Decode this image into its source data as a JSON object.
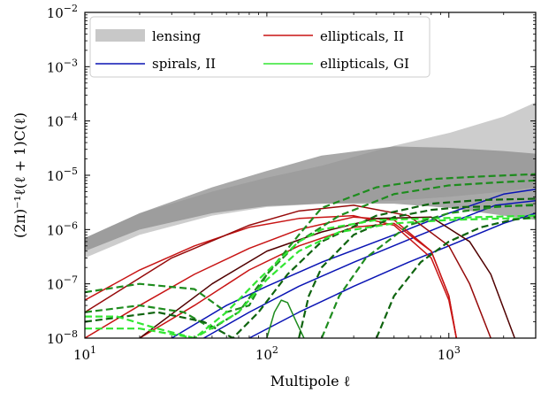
{
  "chart_data": {
    "type": "line",
    "xlabel": "Multipole ℓ",
    "ylabel": "(2π)⁻¹ℓ(ℓ + 1)C(ℓ)",
    "xscale": "log",
    "yscale": "log",
    "xlim": [
      10,
      3000
    ],
    "ylim": [
      1e-08,
      0.01
    ],
    "grid": false,
    "legend_position": "top-left",
    "x_ticks": [
      {
        "value": 10,
        "label": "10",
        "exp": "1"
      },
      {
        "value": 100,
        "label": "10",
        "exp": "2"
      },
      {
        "value": 1000,
        "label": "10",
        "exp": "3"
      }
    ],
    "y_ticks": [
      {
        "value": 1e-08,
        "label": "10",
        "exp": "−8"
      },
      {
        "value": 1e-07,
        "label": "10",
        "exp": "−7"
      },
      {
        "value": 1e-06,
        "label": "10",
        "exp": "−6"
      },
      {
        "value": 1e-05,
        "label": "10",
        "exp": "−5"
      },
      {
        "value": 0.0001,
        "label": "10",
        "exp": "−4"
      },
      {
        "value": 0.001,
        "label": "10",
        "exp": "−3"
      },
      {
        "value": 0.01,
        "label": "10",
        "exp": "−2"
      }
    ],
    "legend": [
      {
        "label": "lensing",
        "kind": "band",
        "color": "#c8c8c8"
      },
      {
        "label": "spirals, II",
        "kind": "line",
        "color": "#0a14b4"
      },
      {
        "label": "ellipticals, II",
        "kind": "line",
        "color": "#c81414"
      },
      {
        "label": "ellipticals, GI",
        "kind": "line",
        "color": "#32e632"
      }
    ],
    "bands": [
      {
        "name": "lensing",
        "color": "#c8c8c8",
        "opacity": 0.9,
        "x": [
          10,
          20,
          50,
          100,
          200,
          500,
          1000,
          2000,
          3000
        ],
        "lower": [
          3e-07,
          8e-07,
          1.8e-06,
          2.6e-06,
          3e-06,
          3.4e-06,
          4e-06,
          5e-06,
          6e-06
        ],
        "upper": [
          7e-07,
          2e-06,
          5e-06,
          9e-06,
          1.5e-05,
          3.5e-05,
          6e-05,
          0.00012,
          0.00022
        ]
      },
      {
        "name": "lensing",
        "color": "#8c8c8c",
        "opacity": 0.75,
        "x": [
          10,
          20,
          50,
          100,
          200,
          500,
          1000,
          2000,
          3000
        ],
        "lower": [
          4e-07,
          1e-06,
          2e-06,
          2.7e-06,
          3e-06,
          3e-06,
          2.5e-06,
          1.8e-06,
          1.5e-06
        ],
        "upper": [
          7e-07,
          2e-06,
          6e-06,
          1.2e-05,
          2.3e-05,
          3.4e-05,
          3.2e-05,
          2.8e-05,
          2.5e-05
        ]
      }
    ],
    "series": [
      {
        "color": "#0a14b4",
        "dash": false,
        "x": [
          30,
          60,
          100,
          200,
          500,
          1000,
          1500,
          2000,
          3000
        ],
        "y": [
          1e-08,
          4e-08,
          9e-08,
          2.5e-07,
          8e-07,
          2e-06,
          3.2e-06,
          4.5e-06,
          5.5e-06
        ]
      },
      {
        "color": "#0a14b4",
        "dash": false,
        "x": [
          45,
          80,
          150,
          300,
          600,
          1000,
          1800,
          3000
        ],
        "y": [
          1e-08,
          3e-08,
          9e-08,
          2.5e-07,
          6.5e-07,
          1.3e-06,
          2.8e-06,
          3.4e-06
        ]
      },
      {
        "color": "#0a14b4",
        "dash": false,
        "x": [
          80,
          150,
          300,
          600,
          1000,
          2000,
          3000
        ],
        "y": [
          1e-08,
          3e-08,
          9e-08,
          2.5e-07,
          5e-07,
          1.3e-06,
          2e-06
        ]
      },
      {
        "color": "#c81414",
        "dash": false,
        "x": [
          10,
          20,
          40,
          80,
          150,
          300,
          500,
          800,
          1000,
          1100
        ],
        "y": [
          5e-08,
          1.8e-07,
          5e-07,
          1.1e-06,
          1.6e-06,
          1.8e-06,
          1.2e-06,
          3e-07,
          5e-08,
          1e-08
        ]
      },
      {
        "color": "#c81414",
        "dash": false,
        "x": [
          10,
          20,
          40,
          80,
          150,
          300,
          500,
          800,
          1000,
          1100
        ],
        "y": [
          1e-08,
          4e-08,
          1.5e-07,
          4.5e-07,
          1e-06,
          1.7e-06,
          1.5e-06,
          4e-07,
          6e-08,
          1e-08
        ]
      },
      {
        "color": "#c81414",
        "dash": false,
        "x": [
          20,
          40,
          80,
          150,
          300,
          500,
          800,
          1000,
          1100
        ],
        "y": [
          1e-08,
          4e-08,
          1.8e-07,
          5e-07,
          1.1e-06,
          1.3e-06,
          4e-07,
          6e-08,
          1e-08
        ]
      },
      {
        "color": "#960a0a",
        "dash": false,
        "x": [
          10,
          30,
          80,
          150,
          300,
          600,
          1000,
          1300,
          1700
        ],
        "y": [
          3e-08,
          3e-07,
          1.2e-06,
          2.2e-06,
          2.8e-06,
          1.8e-06,
          5e-07,
          1e-07,
          1e-08
        ]
      },
      {
        "color": "#500000",
        "dash": false,
        "x": [
          20,
          50,
          100,
          200,
          400,
          800,
          1300,
          1700,
          2300
        ],
        "y": [
          1e-08,
          1e-07,
          4e-07,
          9e-07,
          1.6e-06,
          1.7e-06,
          6e-07,
          1.5e-07,
          1e-08
        ]
      },
      {
        "color": "#1e8c1e",
        "dash": false,
        "x": [
          100,
          110,
          120,
          130,
          145,
          160
        ],
        "y": [
          1e-08,
          3e-08,
          5e-08,
          4.5e-08,
          2e-08,
          1e-08
        ]
      },
      {
        "color": "#1e8c1e",
        "dash": true,
        "x": [
          10,
          20,
          40,
          60,
          80,
          100,
          150,
          200,
          400,
          800,
          1500,
          3000
        ],
        "y": [
          7e-08,
          1e-07,
          8e-08,
          3e-08,
          4e-08,
          1.5e-07,
          8e-07,
          2.5e-06,
          6e-06,
          8.5e-06,
          9.5e-06,
          1.05e-05
        ]
      },
      {
        "color": "#1e8c1e",
        "dash": true,
        "x": [
          10,
          20,
          35,
          50,
          70,
          100,
          150,
          250,
          500,
          1000,
          2000,
          3000
        ],
        "y": [
          3e-08,
          4e-08,
          3e-08,
          1.5e-08,
          3e-08,
          1.5e-07,
          6e-07,
          1.8e-06,
          4.5e-06,
          6.5e-06,
          7.5e-06,
          8e-06
        ]
      },
      {
        "color": "#0f640f",
        "dash": true,
        "x": [
          10,
          25,
          45,
          65,
          90,
          130,
          200,
          400,
          800,
          1500,
          3000
        ],
        "y": [
          2e-08,
          3e-08,
          2e-08,
          1e-08,
          3e-08,
          1.5e-07,
          6e-07,
          1.8e-06,
          3e-06,
          3.5e-06,
          3.7e-06
        ]
      },
      {
        "color": "#0f640f",
        "dash": true,
        "x": [
          150,
          170,
          200,
          300,
          500,
          800,
          1200,
          2000,
          3000
        ],
        "y": [
          1e-08,
          6e-08,
          2e-07,
          8e-07,
          1.7e-06,
          2.3e-06,
          2.6e-06,
          2.7e-06,
          2.8e-06
        ]
      },
      {
        "color": "#32e632",
        "dash": true,
        "x": [
          10,
          15,
          25,
          40,
          60,
          90,
          120,
          150,
          200,
          400,
          800,
          1500,
          3000
        ],
        "y": [
          2.5e-08,
          2.5e-08,
          1.5e-08,
          1e-08,
          3e-08,
          1.2e-07,
          3e-07,
          6e-07,
          1e-06,
          1.5e-06,
          1.6e-06,
          1.7e-06,
          1.8e-06
        ]
      },
      {
        "color": "#32e632",
        "dash": true,
        "x": [
          10,
          20,
          40,
          70,
          100,
          150,
          250,
          500,
          1000,
          2000,
          3000
        ],
        "y": [
          1.5e-08,
          1.5e-08,
          1e-08,
          3e-08,
          1.2e-07,
          4e-07,
          9e-07,
          1.3e-06,
          1.5e-06,
          1.6e-06,
          1.6e-06
        ]
      },
      {
        "color": "#1e8c1e",
        "dash": true,
        "x": [
          200,
          250,
          350,
          600,
          1000,
          1800,
          3000
        ],
        "y": [
          1e-08,
          6e-08,
          3e-07,
          1.2e-06,
          2e-06,
          2.6e-06,
          2.9e-06
        ]
      },
      {
        "color": "#0f640f",
        "dash": true,
        "x": [
          400,
          500,
          700,
          1000,
          1500,
          2200,
          3000
        ],
        "y": [
          1e-08,
          6e-08,
          2.5e-07,
          6e-07,
          1.1e-06,
          1.5e-06,
          1.7e-06
        ]
      }
    ]
  }
}
